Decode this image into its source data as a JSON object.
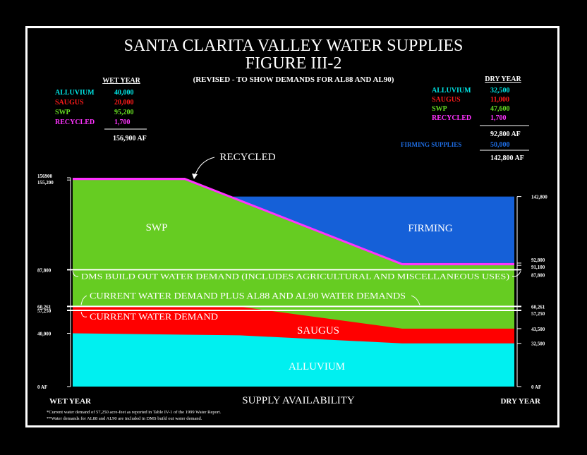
{
  "title": {
    "line1": "SANTA CLARITA VALLEY WATER SUPPLIES",
    "line2": "FIGURE III-2",
    "subtitle": "(REVISED - TO SHOW DEMANDS FOR AL88 AND AL90)"
  },
  "wet_year": {
    "heading": "WET YEAR",
    "items": [
      {
        "label": "ALLUVIUM",
        "value": "40,000",
        "color": "#00e5e5"
      },
      {
        "label": "SAUGUS",
        "value": "20,000",
        "color": "#ff1a1a"
      },
      {
        "label": "SWP",
        "value": "95,200",
        "color": "#66dd22"
      },
      {
        "label": "RECYCLED",
        "value": "1,700",
        "color": "#ff33ff"
      }
    ],
    "total": "156,900 AF"
  },
  "dry_year": {
    "heading": "DRY YEAR",
    "items": [
      {
        "label": "ALLUVIUM",
        "value": "32,500",
        "color": "#00e5e5"
      },
      {
        "label": "SAUGUS",
        "value": "11,000",
        "color": "#ff1a1a"
      },
      {
        "label": "SWP",
        "value": "47,600",
        "color": "#66dd22"
      },
      {
        "label": "RECYCLED",
        "value": "1,700",
        "color": "#ff33ff"
      }
    ],
    "subtotal": "92,800 AF",
    "firming_label": "FIRMING SUPPLIES",
    "firming_value": "50,000",
    "firming_color": "#1e6ee6",
    "total": "142,800 AF"
  },
  "chart_data": {
    "type": "area",
    "ylim": [
      0,
      156900
    ],
    "xlabel": "SUPPLY AVAILABILITY",
    "x_left_label": "WET YEAR",
    "x_right_label": "DRY YEAR",
    "left_ticks": [
      {
        "value": 156900,
        "label": "156900"
      },
      {
        "value": 155200,
        "label": "155,200"
      },
      {
        "value": 87800,
        "label": "87,800"
      },
      {
        "value": 60261,
        "label": "60,261"
      },
      {
        "value": 57250,
        "label": "57,250"
      },
      {
        "value": 40000,
        "label": "40,000"
      },
      {
        "value": 0,
        "label": "0 AF"
      }
    ],
    "right_ticks": [
      {
        "value": 142800,
        "label": "142,800"
      },
      {
        "value": 92800,
        "label": "92,800"
      },
      {
        "value": 91100,
        "label": "91,100"
      },
      {
        "value": 87800,
        "label": "87,800"
      },
      {
        "value": 60261,
        "label": "60,261"
      },
      {
        "value": 57250,
        "label": "57,250"
      },
      {
        "value": 43500,
        "label": "43,500"
      },
      {
        "value": 32500,
        "label": "32,500"
      },
      {
        "value": 0,
        "label": "0 AF"
      }
    ],
    "layer_labels": {
      "swp": "SWP",
      "firming": "FIRMING",
      "saugus": "SAUGUS",
      "alluvium": "ALLUVIUM",
      "recycled_callout": "RECYCLED"
    },
    "demand_lines": [
      {
        "value": 87800,
        "label": "DMS BUILD OUT WATER DEMAND (INCLUDES AGRICULTURAL AND MISCELLANEOUS USES)"
      },
      {
        "value": 60261,
        "label": "CURRENT WATER DEMAND PLUS AL88 AND AL90 WATER DEMANDS"
      },
      {
        "value": 57250,
        "label": "CURRENT WATER DEMAND"
      }
    ]
  },
  "footnotes": [
    "*Current water demand of 57,250 acre-feet as reported in Table IV-1 of the 1999 Water Report.",
    "**Water demands for AL88 and AL90 are included in DMS build out water demand."
  ],
  "colors": {
    "alluvium": "#00f0f0",
    "saugus": "#ff0000",
    "swp": "#66cc22",
    "firming": "#1560d8",
    "recycled": "#ff33ff",
    "text": "#ffffff"
  }
}
